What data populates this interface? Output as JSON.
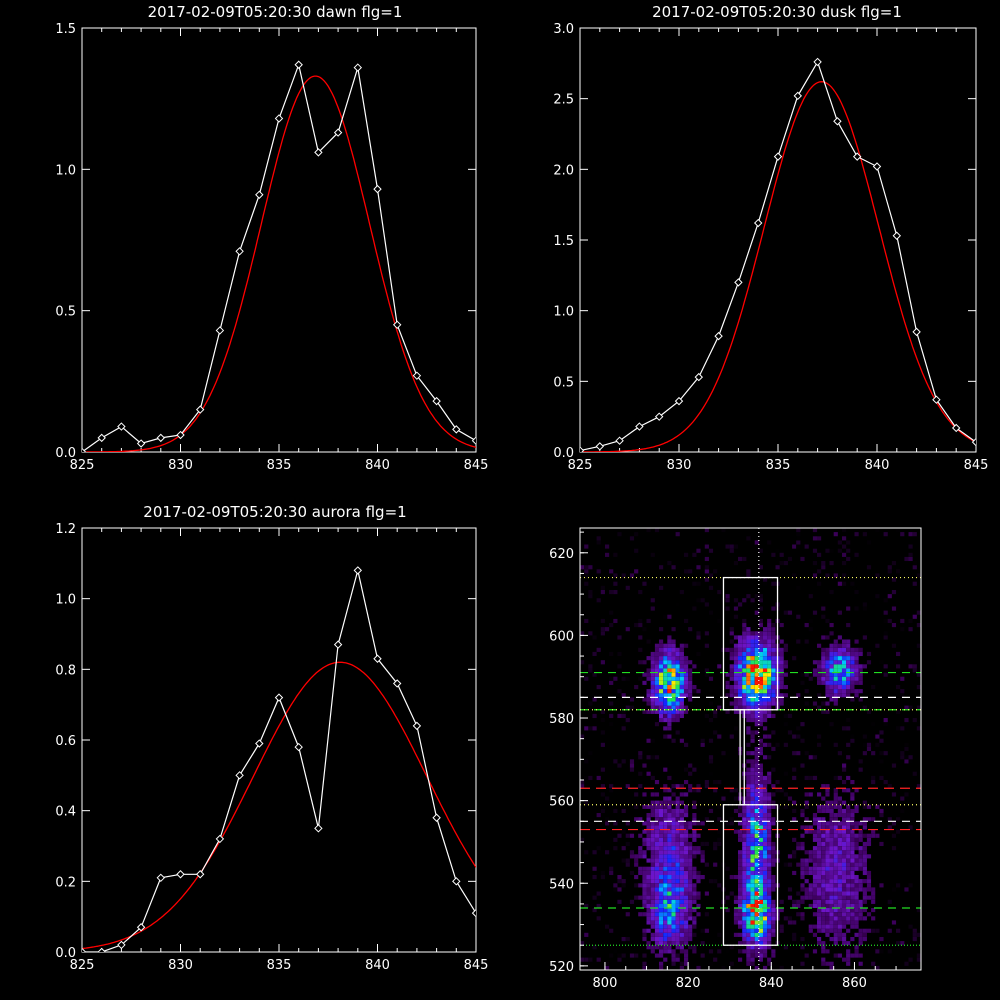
{
  "colors": {
    "background": "#000000",
    "axes": "#ffffff",
    "data": "#ffffff",
    "fit": "#ff0000"
  },
  "chart_data": [
    {
      "type": "line",
      "title": "2017-02-09T05:20:30 dawn flg=1",
      "xlim": [
        825,
        845
      ],
      "ylim": [
        0,
        1.5
      ],
      "xticks": [
        "825",
        "830",
        "835",
        "840",
        "845"
      ],
      "yticks": [
        "0.0",
        "0.5",
        "1.0",
        "1.5"
      ],
      "series": [
        {
          "style": "data-diamond",
          "x": [
            825,
            826,
            827,
            828,
            829,
            830,
            831,
            832,
            833,
            834,
            835,
            836,
            837,
            838,
            839,
            840,
            841,
            842,
            843,
            844,
            845
          ],
          "y": [
            0.0,
            0.05,
            0.09,
            0.03,
            0.05,
            0.06,
            0.15,
            0.43,
            0.71,
            0.91,
            1.18,
            1.37,
            1.06,
            1.13,
            1.36,
            0.93,
            0.45,
            0.27,
            0.18,
            0.08,
            0.04
          ]
        },
        {
          "style": "fit",
          "amplitude": 1.33,
          "center": 836.85,
          "sigma": 2.75
        }
      ]
    },
    {
      "type": "line",
      "title": "2017-02-09T05:20:30 dusk flg=1",
      "xlim": [
        825,
        845
      ],
      "ylim": [
        0,
        3.0
      ],
      "xticks": [
        "825",
        "830",
        "835",
        "840",
        "845"
      ],
      "yticks": [
        "0.0",
        "0.5",
        "1.0",
        "1.5",
        "2.0",
        "2.5",
        "3.0"
      ],
      "series": [
        {
          "style": "data-diamond",
          "x": [
            825,
            826,
            827,
            828,
            829,
            830,
            831,
            832,
            833,
            834,
            835,
            836,
            837,
            838,
            839,
            840,
            841,
            842,
            843,
            844,
            845
          ],
          "y": [
            0.01,
            0.04,
            0.08,
            0.18,
            0.25,
            0.36,
            0.53,
            0.82,
            1.2,
            1.62,
            2.09,
            2.52,
            2.76,
            2.34,
            2.09,
            2.02,
            1.53,
            0.85,
            0.37,
            0.17,
            0.07
          ]
        },
        {
          "style": "fit",
          "amplitude": 2.62,
          "center": 837.2,
          "sigma": 2.9
        }
      ]
    },
    {
      "type": "line",
      "title": "2017-02-09T05:20:30 aurora flg=1",
      "xlim": [
        825,
        845
      ],
      "ylim": [
        0,
        1.2
      ],
      "xticks": [
        "825",
        "830",
        "835",
        "840",
        "845"
      ],
      "yticks": [
        "0.0",
        "0.2",
        "0.4",
        "0.6",
        "0.8",
        "1.0",
        "1.2"
      ],
      "series": [
        {
          "style": "data-diamond",
          "x": [
            825,
            826,
            827,
            828,
            829,
            830,
            831,
            832,
            833,
            834,
            835,
            836,
            837,
            838,
            839,
            840,
            841,
            842,
            843,
            844,
            845
          ],
          "y": [
            0.0,
            0.0,
            0.02,
            0.07,
            0.21,
            0.22,
            0.22,
            0.32,
            0.5,
            0.59,
            0.72,
            0.58,
            0.35,
            0.87,
            1.08,
            0.83,
            0.76,
            0.64,
            0.38,
            0.2,
            0.11
          ]
        },
        {
          "style": "fit",
          "amplitude": 0.82,
          "center": 838.1,
          "sigma": 4.4
        }
      ]
    },
    {
      "type": "heatmap",
      "title": "",
      "xlim": [
        794,
        876
      ],
      "ylim": [
        519,
        626
      ],
      "xticks": [
        "800",
        "820",
        "840",
        "860"
      ],
      "yticks": [
        "520",
        "540",
        "560",
        "580",
        "600",
        "620"
      ],
      "blobs": [
        {
          "x": 815,
          "y": 588,
          "amp": 0.85,
          "sx": 2.4,
          "sy": 4.5
        },
        {
          "x": 836,
          "y": 590,
          "amp": 1.0,
          "sx": 3.0,
          "sy": 5.0
        },
        {
          "x": 856,
          "y": 591,
          "amp": 0.55,
          "sx": 2.6,
          "sy": 3.5
        },
        {
          "x": 836,
          "y": 546,
          "amp": 0.55,
          "sx": 2.0,
          "sy": 12.0
        },
        {
          "x": 836,
          "y": 532,
          "amp": 0.7,
          "sx": 2.2,
          "sy": 4.0
        },
        {
          "x": 815,
          "y": 533,
          "amp": 0.45,
          "sx": 3.0,
          "sy": 6.0
        },
        {
          "x": 815,
          "y": 548,
          "amp": 0.25,
          "sx": 4.0,
          "sy": 8.0
        },
        {
          "x": 855,
          "y": 542,
          "amp": 0.2,
          "sx": 5.0,
          "sy": 12.0
        }
      ],
      "boxes": [
        {
          "x0": 828.5,
          "x1": 841.5,
          "y0": 582,
          "y1": 614
        },
        {
          "x0": 828.5,
          "x1": 841.5,
          "y0": 525,
          "y1": 559
        },
        {
          "x0": 832.5,
          "x1": 833.5,
          "y0": 559,
          "y1": 582
        }
      ],
      "hlines": [
        {
          "y": 614,
          "color": "#ffff66",
          "dash": "1,3"
        },
        {
          "y": 591,
          "color": "#22dd22",
          "dash": "8,6"
        },
        {
          "y": 585,
          "color": "#ffffff",
          "dash": "8,6"
        },
        {
          "y": 582,
          "color": "#22dd22",
          "dash": "8,6"
        },
        {
          "y": 582,
          "color": "#ffff66",
          "dash": "1,3"
        },
        {
          "y": 563,
          "color": "#ff2222",
          "dash": "10,6"
        },
        {
          "y": 559,
          "color": "#ffff66",
          "dash": "1,3"
        },
        {
          "y": 555,
          "color": "#ffffff",
          "dash": "8,6"
        },
        {
          "y": 553,
          "color": "#ff2222",
          "dash": "10,6"
        },
        {
          "y": 534,
          "color": "#22dd22",
          "dash": "8,6"
        },
        {
          "y": 525,
          "color": "#22dd22",
          "dash": "1,2"
        }
      ],
      "vlines": [
        {
          "x": 837,
          "color": "#ffffff",
          "dash": "1,3"
        }
      ]
    }
  ]
}
